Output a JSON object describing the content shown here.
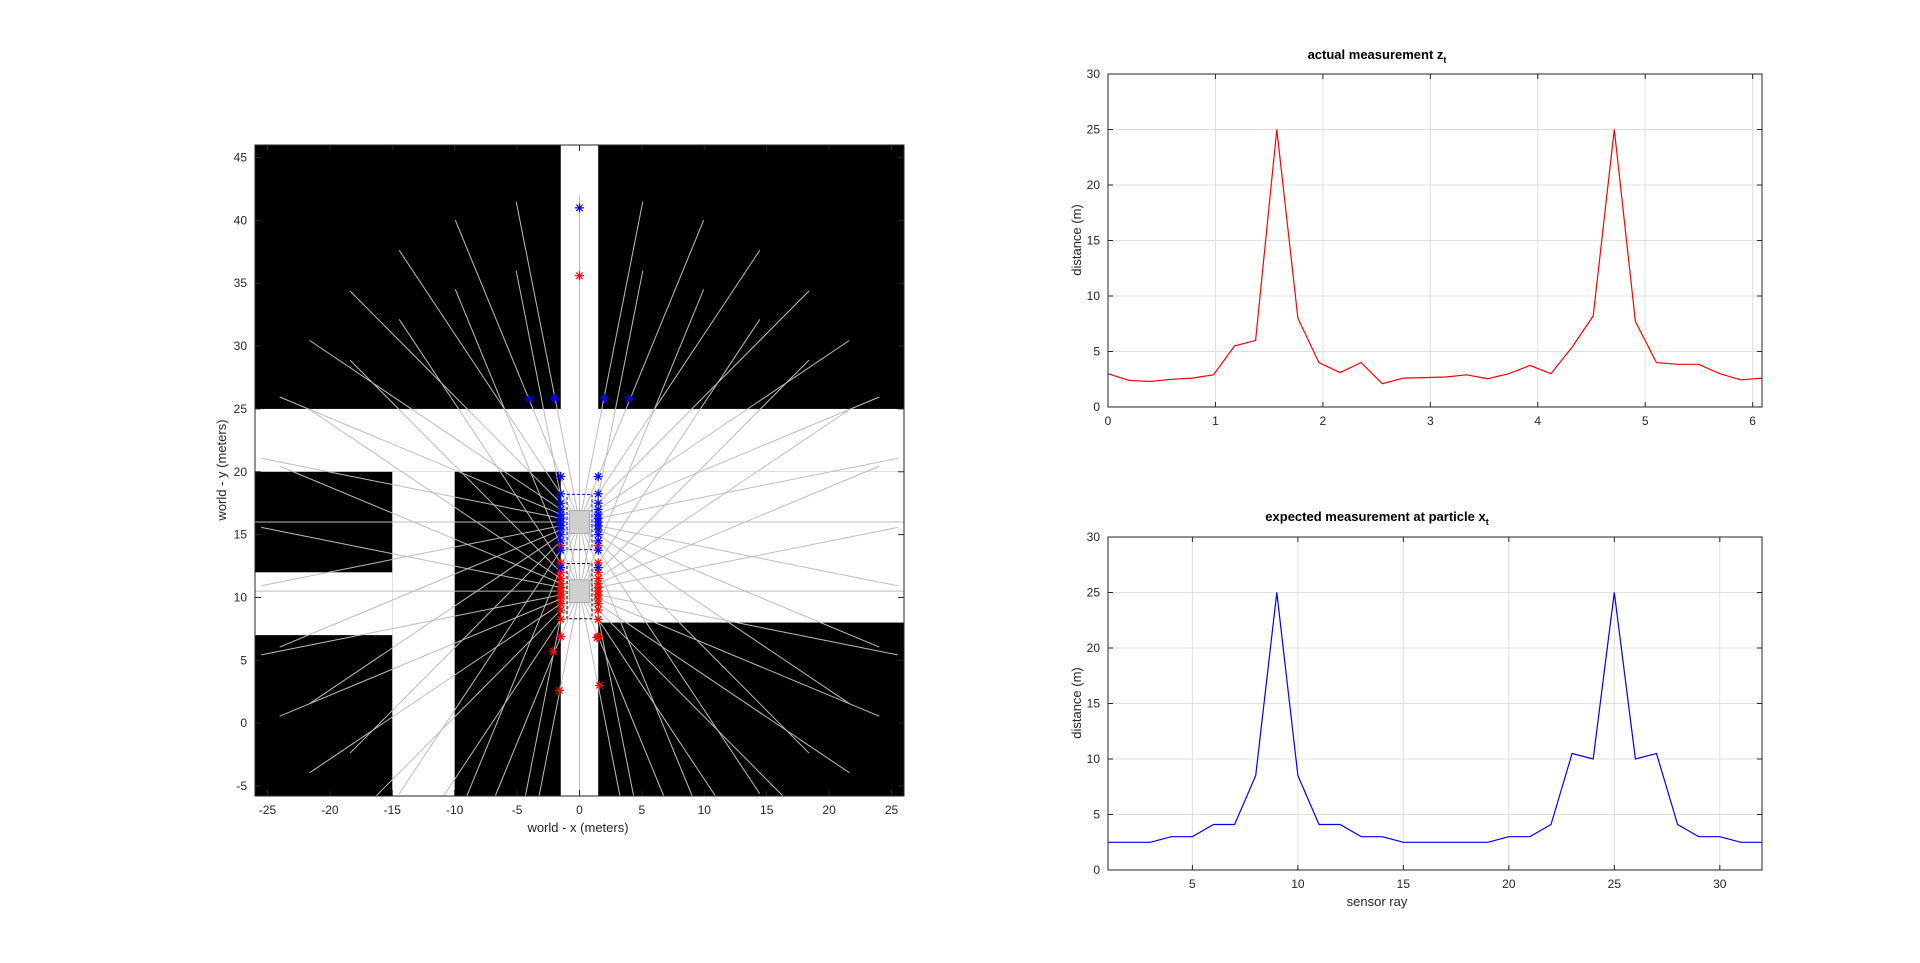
{
  "chart_data": [
    {
      "id": "map",
      "type": "scatter",
      "title": "",
      "xlabel": "world - x (meters)",
      "ylabel": "world - y (meters)",
      "xlim": [
        -26,
        26
      ],
      "ylim": [
        -5.8,
        46
      ],
      "xticks": [
        -25,
        -20,
        -15,
        -10,
        -5,
        0,
        5,
        10,
        15,
        20,
        25
      ],
      "yticks": [
        -5,
        0,
        5,
        10,
        15,
        20,
        25,
        30,
        35,
        40,
        45
      ],
      "grid": false,
      "free_space_rects": [
        {
          "x0": -1.5,
          "x1": 1.5,
          "y0": -5.8,
          "y1": 46
        },
        {
          "x0": -26,
          "x1": 26,
          "y0": 20,
          "y1": 25
        },
        {
          "x0": -15,
          "x1": -10,
          "y0": -5.8,
          "y1": 20
        },
        {
          "x0": -26,
          "x1": -15,
          "y0": 7,
          "y1": 12
        },
        {
          "x0": 1.5,
          "x1": 26,
          "y0": 8,
          "y1": 20
        }
      ],
      "actual_pose": {
        "x": 0,
        "y": 10.5
      },
      "particle_pose": {
        "x": 0,
        "y": 16
      },
      "n_rays": 32,
      "actual_hits": [
        {
          "x": 0,
          "y": 35.6
        },
        {
          "x": 1.6,
          "y": 3.0
        },
        {
          "x": -1.6,
          "y": 2.6
        },
        {
          "x": -2.1,
          "y": 5.7
        },
        {
          "x": 1.4,
          "y": 6.8
        }
      ],
      "expected_hits": [
        {
          "x": 0,
          "y": 41.0
        },
        {
          "x": -4.0,
          "y": 25.8
        },
        {
          "x": -2.0,
          "y": 25.8
        },
        {
          "x": 2.0,
          "y": 25.8
        },
        {
          "x": 4.0,
          "y": 25.8
        }
      ],
      "colors": {
        "actual": "#ff0000",
        "expected": "#0000ff",
        "ray": "#bdbdbd",
        "obstacle": "#000000"
      }
    },
    {
      "id": "actual",
      "type": "line",
      "title": "actual measurement z",
      "title_sub": "t",
      "xlabel": "",
      "ylabel": "distance (m)",
      "xlim": [
        0,
        6.087
      ],
      "ylim": [
        0,
        30
      ],
      "xticks": [
        0,
        1,
        2,
        3,
        4,
        5,
        6
      ],
      "yticks": [
        0,
        5,
        10,
        15,
        20,
        25,
        30
      ],
      "grid": true,
      "color": "#ff0000",
      "x": [
        0,
        0.196,
        0.393,
        0.589,
        0.785,
        0.982,
        1.178,
        1.374,
        1.571,
        1.767,
        1.963,
        2.16,
        2.356,
        2.553,
        2.749,
        2.945,
        3.142,
        3.338,
        3.534,
        3.731,
        3.927,
        4.123,
        4.32,
        4.516,
        4.712,
        4.909,
        5.105,
        5.301,
        5.498,
        5.694,
        5.89,
        6.087
      ],
      "values": [
        3.0,
        2.4,
        2.3,
        2.5,
        2.6,
        2.9,
        5.5,
        6.0,
        25.0,
        8.0,
        4.0,
        3.1,
        4.0,
        2.1,
        2.6,
        2.65,
        2.7,
        2.9,
        2.55,
        3.0,
        3.75,
        3.0,
        5.4,
        8.2,
        25.0,
        7.7,
        4.0,
        3.85,
        3.85,
        3.0,
        2.45,
        2.6
      ]
    },
    {
      "id": "expected",
      "type": "line",
      "title": "expected measurement at particle x",
      "title_sub": "t",
      "xlabel": "sensor ray",
      "ylabel": "distance (m)",
      "xlim": [
        1,
        32
      ],
      "ylim": [
        0,
        30
      ],
      "xticks": [
        5,
        10,
        15,
        20,
        25,
        30
      ],
      "yticks": [
        0,
        5,
        10,
        15,
        20,
        25,
        30
      ],
      "grid": true,
      "color": "#0000ff",
      "x": [
        1,
        2,
        3,
        4,
        5,
        6,
        7,
        8,
        9,
        10,
        11,
        12,
        13,
        14,
        15,
        16,
        17,
        18,
        19,
        20,
        21,
        22,
        23,
        24,
        25,
        26,
        27,
        28,
        29,
        30,
        31,
        32
      ],
      "values": [
        2.5,
        2.5,
        2.5,
        3.0,
        3.0,
        4.1,
        4.1,
        8.5,
        25.0,
        8.5,
        4.1,
        4.1,
        3.0,
        3.0,
        2.5,
        2.5,
        2.5,
        2.5,
        2.5,
        3.0,
        3.0,
        4.1,
        10.5,
        10.0,
        25.0,
        10.0,
        10.5,
        4.1,
        3.0,
        3.0,
        2.5,
        2.5
      ]
    }
  ]
}
